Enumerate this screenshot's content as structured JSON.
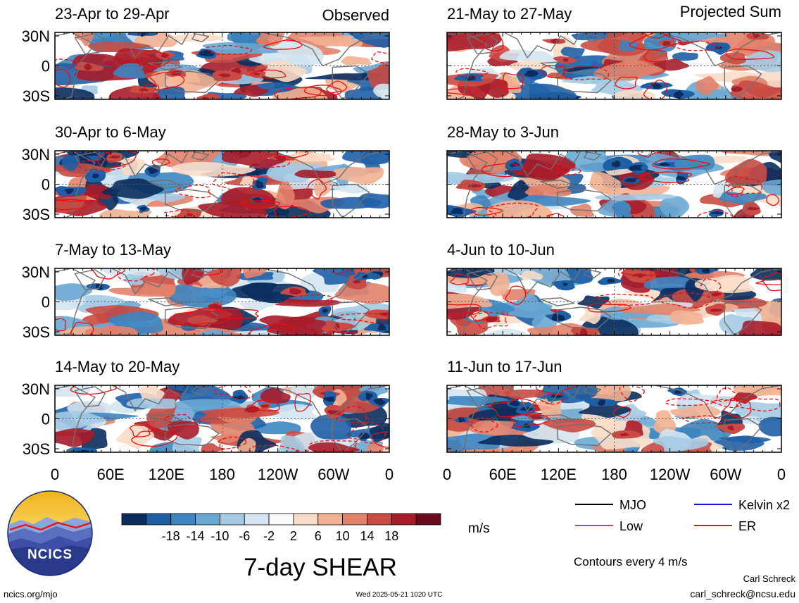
{
  "columns": [
    {
      "header": "Observed"
    },
    {
      "header": "Projected Sum"
    }
  ],
  "panels": [
    {
      "col": 0,
      "row": 0,
      "title": "23-Apr to 29-Apr"
    },
    {
      "col": 0,
      "row": 1,
      "title": "30-Apr to 6-May"
    },
    {
      "col": 0,
      "row": 2,
      "title": "7-May to 13-May"
    },
    {
      "col": 0,
      "row": 3,
      "title": "14-May to 20-May"
    },
    {
      "col": 1,
      "row": 0,
      "title": "21-May to 27-May"
    },
    {
      "col": 1,
      "row": 1,
      "title": "28-May to 3-Jun"
    },
    {
      "col": 1,
      "row": 2,
      "title": "4-Jun to 10-Jun"
    },
    {
      "col": 1,
      "row": 3,
      "title": "11-Jun to 17-Jun"
    }
  ],
  "lat_labels": [
    "30N",
    "0",
    "30S"
  ],
  "lon_labels": [
    "0",
    "60E",
    "120E",
    "180",
    "120W",
    "60W",
    "0"
  ],
  "colorbar": {
    "colors": [
      "#0a2d5e",
      "#1f5fa6",
      "#3d85c0",
      "#6aa8d4",
      "#a5cbe4",
      "#d3e5f1",
      "#f9f9f9",
      "#f9dcc8",
      "#f2b192",
      "#e2826a",
      "#c94b44",
      "#a81c2a",
      "#6a0a1a"
    ],
    "tick_labels": [
      "-18",
      "-14",
      "-10",
      "-6",
      "-2",
      "2",
      "6",
      "10",
      "14",
      "18"
    ],
    "unit": "m/s"
  },
  "title": "7-day SHEAR",
  "legend": {
    "items": [
      {
        "label": "MJO",
        "color": "#000000"
      },
      {
        "label": "Kelvin x2",
        "color": "#1414d6"
      },
      {
        "label": "Low",
        "color": "#a040e0"
      },
      {
        "label": "ER",
        "color": "#e81010"
      }
    ],
    "note": "Contours every 4 m/s"
  },
  "logo": {
    "text": "NCICS"
  },
  "footer": {
    "left": "ncics.org/mjo",
    "center": "Wed 2025-05-21 1020 UTC",
    "author": "Carl Schreck",
    "email": "carl_schreck@ncsu.edu"
  }
}
